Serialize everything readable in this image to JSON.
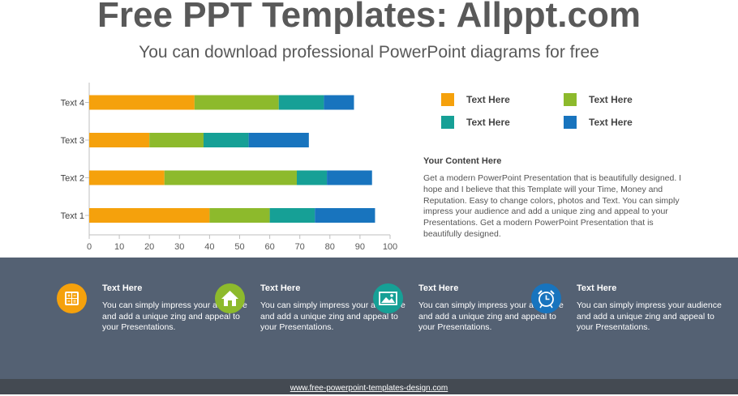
{
  "header": {
    "title": "Free PPT Templates: Allppt.com",
    "subtitle": "You can download professional PowerPoint diagrams for free"
  },
  "colors": {
    "orange": "#F5A10C",
    "green": "#8DBA2C",
    "teal": "#16A096",
    "blue": "#1874BE",
    "band": "#546173",
    "footer": "#444A52"
  },
  "chart_data": {
    "type": "bar",
    "orientation": "horizontal",
    "stacked": true,
    "categories": [
      "Text 1",
      "Text 2",
      "Text 3",
      "Text 4"
    ],
    "series": [
      {
        "color": "#F5A10C",
        "values": [
          40,
          25,
          20,
          35
        ]
      },
      {
        "color": "#8DBA2C",
        "values": [
          20,
          44,
          18,
          28
        ]
      },
      {
        "color": "#16A096",
        "values": [
          15,
          10,
          15,
          15
        ]
      },
      {
        "color": "#1874BE",
        "values": [
          20,
          15,
          20,
          10
        ]
      }
    ],
    "xlim": [
      0,
      100
    ],
    "xticks": [
      0,
      10,
      20,
      30,
      40,
      50,
      60,
      70,
      80,
      90,
      100
    ],
    "grid": false,
    "legend": "right"
  },
  "legend": {
    "items": [
      {
        "label": "Text  Here",
        "color": "#F5A10C"
      },
      {
        "label": "Text  Here",
        "color": "#8DBA2C"
      },
      {
        "label": "Text  Here",
        "color": "#16A096"
      },
      {
        "label": "Text  Here",
        "color": "#1874BE"
      }
    ]
  },
  "content": {
    "heading": "Your Content Here",
    "body": "Get a modern PowerPoint  Presentation that is beautifully designed. I hope and I believe that this Template will your Time, Money and Reputation. Easy to change colors, photos and Text. You can simply impress your audience and add a unique zing and appeal to your Presentations. Get a modern PowerPoint  Presentation that is beautifully designed."
  },
  "features": [
    {
      "title": "Text  Here",
      "text": "You can simply impress your audience and add a unique zing and appeal to your Presentations.",
      "icon": "calculator-icon",
      "color": "#F5A10C"
    },
    {
      "title": "Text  Here",
      "text": "You can simply impress your audience and add a unique zing and appeal to your Presentations.",
      "icon": "home-icon",
      "color": "#8DBA2C"
    },
    {
      "title": "Text  Here",
      "text": "You can simply impress your audience and add a unique zing and appeal to your Presentations.",
      "icon": "picture-icon",
      "color": "#16A096"
    },
    {
      "title": "Text  Here",
      "text": "You can simply impress your audience and add a unique zing and appeal to your Presentations.",
      "icon": "alarm-clock-icon",
      "color": "#1874BE"
    }
  ],
  "footer": {
    "link": "www.free-powerpoint-templates-design.com"
  }
}
